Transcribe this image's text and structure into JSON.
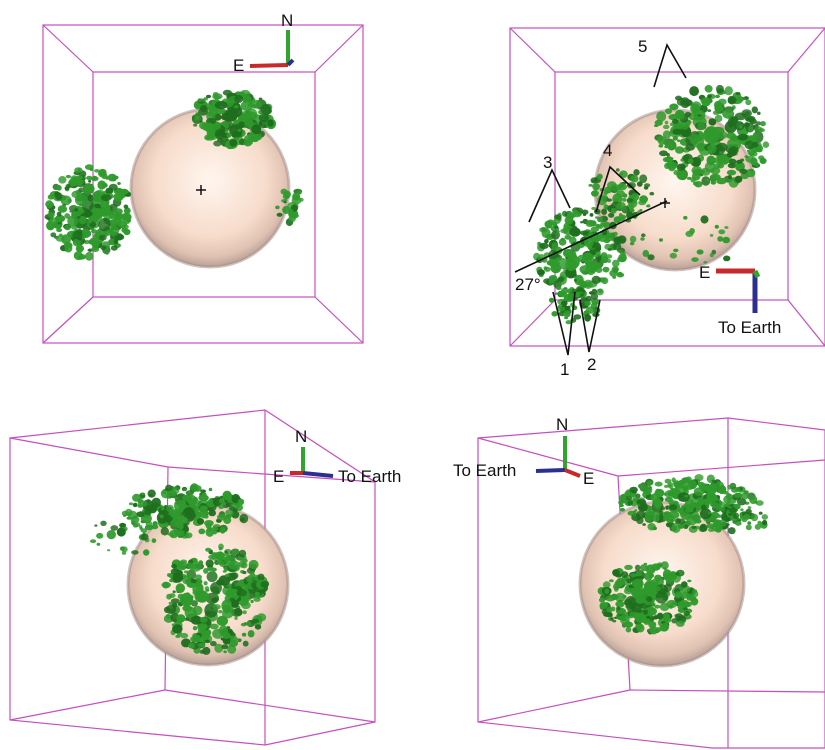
{
  "colors": {
    "box": "#c64fc0",
    "sphere_core": "#fbe8db",
    "sphere_edge": "#b89a8e",
    "cloud": "#2f9a2c",
    "cloud_dark": "#1e6e1e",
    "axis_east": "#c62a2a",
    "axis_north": "#2fa52f",
    "axis_earth": "#2b2f8f"
  },
  "panels": [
    {
      "id": "panel-1",
      "axes": {
        "north": "N",
        "east": "E",
        "earth": ""
      }
    },
    {
      "id": "panel-2",
      "axes": {
        "north": "",
        "east": "E",
        "earth": "To Earth"
      },
      "annotations": {
        "label_1": "1",
        "label_2": "2",
        "label_3": "3",
        "label_4": "4",
        "label_5": "5",
        "angle": "27°"
      }
    },
    {
      "id": "panel-3",
      "axes": {
        "north": "N",
        "east": "E",
        "earth": "To Earth"
      }
    },
    {
      "id": "panel-4",
      "axes": {
        "north": "N",
        "east": "E",
        "earth": "To Earth"
      }
    }
  ]
}
